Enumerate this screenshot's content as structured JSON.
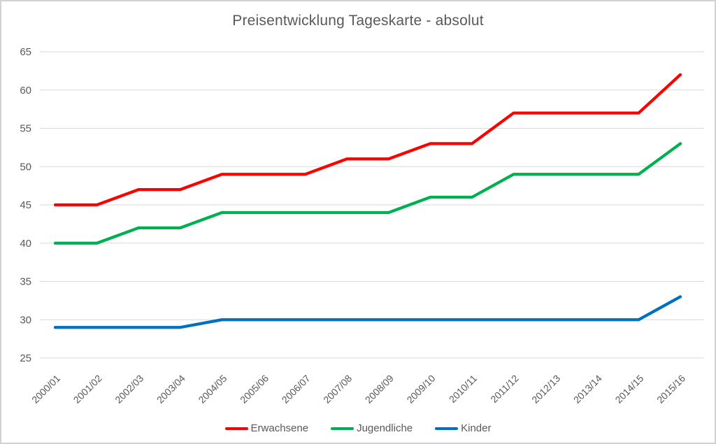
{
  "window": {
    "background_color": "#ffffff",
    "border_color": "#d2d2d2",
    "text_color": "#595959"
  },
  "chart_data": {
    "type": "line",
    "title": "Preisentwicklung Tageskarte - absolut",
    "xlabel": "",
    "ylabel": "",
    "categories": [
      "2000/01",
      "2001/02",
      "2002/03",
      "2003/04",
      "2004/05",
      "2005/06",
      "2006/07",
      "2007/08",
      "2008/09",
      "2009/10",
      "2010/11",
      "2011/12",
      "2012/13",
      "2013/14",
      "2014/15",
      "2015/16"
    ],
    "series": [
      {
        "name": "Erwachsene",
        "color": "#ff0000",
        "values": [
          45,
          45,
          47,
          47,
          49,
          49,
          49,
          51,
          51,
          53,
          53,
          57,
          57,
          57,
          57,
          62
        ]
      },
      {
        "name": "Jugendliche",
        "color": "#00b050",
        "values": [
          40,
          40,
          42,
          42,
          44,
          44,
          44,
          44,
          44,
          46,
          46,
          49,
          49,
          49,
          49,
          53
        ]
      },
      {
        "name": "Kinder",
        "color": "#0070c0",
        "values": [
          29,
          29,
          29,
          29,
          30,
          30,
          30,
          30,
          30,
          30,
          30,
          30,
          30,
          30,
          30,
          33
        ]
      }
    ],
    "ylim": [
      25,
      65
    ],
    "ytick_step": 5,
    "grid": true,
    "gridline_color": "#d9d9d9",
    "axis_text_color": "#595959",
    "legend_position": "bottom",
    "x_labels_rotation_deg": -45
  }
}
